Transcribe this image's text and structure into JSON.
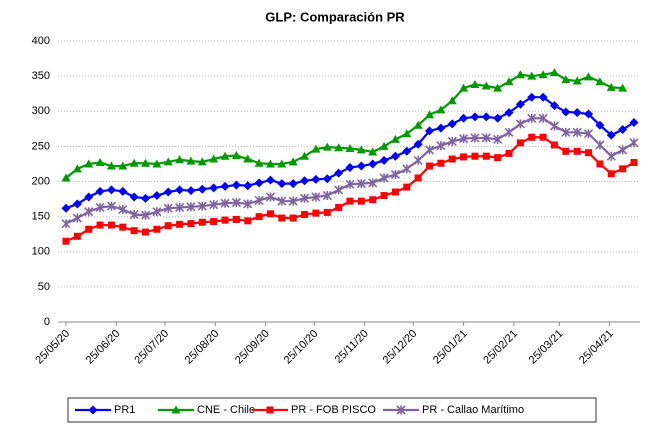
{
  "chart_data": {
    "type": "line",
    "title": "GLP: Comparación PR",
    "x": [
      "25/05/20",
      "01/06/20",
      "08/06/20",
      "15/06/20",
      "22/06/20",
      "29/06/20",
      "06/07/20",
      "13/07/20",
      "20/07/20",
      "27/07/20",
      "03/08/20",
      "10/08/20",
      "17/08/20",
      "24/08/20",
      "31/08/20",
      "07/09/20",
      "14/09/20",
      "21/09/20",
      "28/09/20",
      "05/10/20",
      "12/10/20",
      "19/10/20",
      "26/10/20",
      "02/11/20",
      "09/11/20",
      "16/11/20",
      "23/11/20",
      "30/11/20",
      "07/12/20",
      "14/12/20",
      "21/12/20",
      "28/12/20",
      "04/01/21",
      "11/01/21",
      "18/01/21",
      "25/01/21",
      "01/02/21",
      "08/02/21",
      "15/02/21",
      "22/02/21",
      "01/03/21",
      "08/03/21",
      "15/03/21",
      "22/03/21",
      "29/03/21",
      "05/04/21",
      "12/04/21",
      "19/04/21",
      "26/04/21",
      "03/05/21",
      "10/05/21"
    ],
    "series": [
      {
        "name": "PR1",
        "color": "#0000ff",
        "marker": "diamond",
        "values": [
          162,
          168,
          178,
          186,
          188,
          186,
          178,
          176,
          180,
          185,
          188,
          187,
          189,
          191,
          193,
          195,
          194,
          198,
          202,
          197,
          197,
          201,
          203,
          204,
          212,
          220,
          222,
          225,
          230,
          236,
          243,
          253,
          272,
          276,
          282,
          290,
          292,
          292,
          290,
          298,
          310,
          320,
          320,
          308,
          299,
          298,
          296,
          280,
          266,
          274,
          284
        ]
      },
      {
        "name": "CNE - Chile",
        "color": "#009a00",
        "marker": "triangle",
        "values": [
          205,
          218,
          225,
          227,
          222,
          222,
          226,
          226,
          225,
          228,
          231,
          229,
          228,
          232,
          236,
          237,
          232,
          226,
          225,
          225,
          228,
          236,
          246,
          249,
          248,
          247,
          245,
          242,
          250,
          260,
          268,
          280,
          295,
          302,
          315,
          333,
          338,
          336,
          333,
          342,
          352,
          350,
          352,
          355,
          345,
          343,
          349,
          342,
          334,
          333,
          null
        ]
      },
      {
        "name": "PR - FOB PISCO",
        "color": "#ff0000",
        "marker": "square",
        "values": [
          115,
          122,
          132,
          138,
          138,
          135,
          130,
          128,
          132,
          137,
          139,
          140,
          142,
          143,
          145,
          146,
          144,
          150,
          154,
          148,
          148,
          153,
          155,
          156,
          163,
          172,
          172,
          174,
          180,
          185,
          192,
          205,
          222,
          226,
          232,
          235,
          236,
          236,
          234,
          240,
          255,
          263,
          263,
          252,
          243,
          243,
          241,
          225,
          211,
          218,
          227
        ]
      },
      {
        "name": "PR - Callao Marítimo",
        "color": "#8064a2",
        "marker": "cross",
        "values": [
          140,
          148,
          157,
          163,
          165,
          160,
          153,
          152,
          157,
          162,
          163,
          164,
          165,
          167,
          169,
          170,
          168,
          173,
          178,
          172,
          172,
          176,
          178,
          180,
          188,
          196,
          197,
          198,
          205,
          210,
          218,
          230,
          245,
          251,
          257,
          261,
          262,
          262,
          260,
          270,
          282,
          290,
          290,
          279,
          270,
          270,
          268,
          252,
          236,
          245,
          255
        ]
      }
    ],
    "xlim": [
      "25/05/20",
      "10/05/21"
    ],
    "xticks": [
      "25/05/20",
      "25/06/20",
      "25/07/20",
      "25/08/20",
      "25/09/20",
      "25/10/20",
      "25/11/20",
      "25/12/20",
      "25/01/21",
      "25/02/21",
      "25/03/21",
      "25/04/21"
    ],
    "ylim": [
      0,
      400
    ],
    "yticks": [
      0,
      50,
      100,
      150,
      200,
      250,
      300,
      350,
      400
    ],
    "grid": true,
    "legend": "bottom"
  }
}
